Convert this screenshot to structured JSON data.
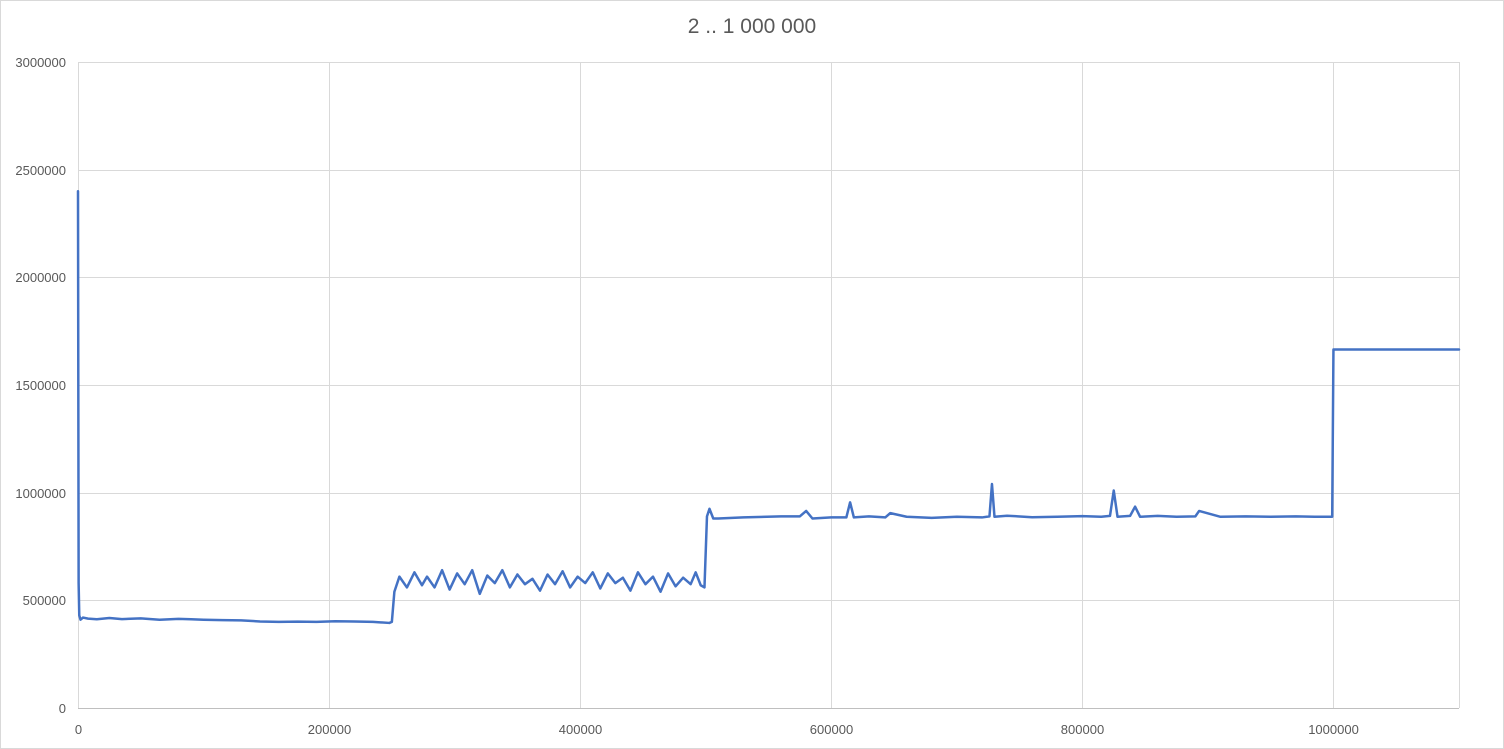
{
  "chart_data": {
    "type": "line",
    "title": "2 .. 1 000 000",
    "xlabel": "",
    "ylabel": "",
    "xlim": [
      0,
      1100000
    ],
    "ylim": [
      0,
      3000000
    ],
    "x_ticks": [
      0,
      200000,
      400000,
      600000,
      800000,
      1000000
    ],
    "x_tick_labels": [
      "0",
      "200000",
      "400000",
      "600000",
      "800000",
      "1000000"
    ],
    "y_ticks": [
      0,
      500000,
      1000000,
      1500000,
      2000000,
      2500000,
      3000000
    ],
    "y_tick_labels": [
      "0",
      "500000",
      "1000000",
      "1500000",
      "2000000",
      "2500000",
      "3000000"
    ],
    "grid": true,
    "legend": "none",
    "colors": {
      "series": "#4472C4",
      "grid": "#d9d9d9",
      "axis": "#bfbfbf",
      "text": "#595959"
    },
    "series": [
      {
        "x": [
          0,
          500,
          1000,
          2000,
          4000,
          8000,
          15000,
          25000,
          35000,
          50000,
          65000,
          80000,
          90000,
          100000,
          115000,
          130000,
          145000,
          160000,
          175000,
          190000,
          205000,
          220000,
          235000,
          248000,
          250000,
          252000,
          256000,
          262000,
          268000,
          274000,
          278000,
          284000,
          290000,
          296000,
          302000,
          308000,
          314000,
          320000,
          326000,
          332000,
          338000,
          344000,
          350000,
          356000,
          362000,
          368000,
          374000,
          380000,
          386000,
          392000,
          398000,
          404000,
          410000,
          416000,
          422000,
          428000,
          434000,
          440000,
          446000,
          452000,
          458000,
          464000,
          470000,
          476000,
          482000,
          488000,
          492000,
          496000,
          499000,
          501000,
          503000,
          506000,
          510000,
          530000,
          560000,
          575000,
          580000,
          585000,
          600000,
          612000,
          615000,
          618000,
          630000,
          643000,
          647000,
          660000,
          680000,
          700000,
          720000,
          726000,
          728000,
          730000,
          740000,
          760000,
          780000,
          800000,
          815000,
          822000,
          825000,
          828000,
          838000,
          842000,
          846000,
          860000,
          875000,
          890000,
          893000,
          910000,
          930000,
          950000,
          970000,
          985000,
          999000,
          1000000,
          1001000,
          1100000
        ],
        "values": [
          2400000,
          580000,
          430000,
          410000,
          420000,
          415000,
          412000,
          418000,
          413000,
          416000,
          410000,
          414000,
          412000,
          410000,
          408000,
          407000,
          402000,
          400000,
          401000,
          400000,
          403000,
          402000,
          400000,
          395000,
          400000,
          540000,
          610000,
          560000,
          630000,
          570000,
          610000,
          560000,
          640000,
          550000,
          625000,
          575000,
          640000,
          530000,
          615000,
          580000,
          640000,
          560000,
          620000,
          575000,
          600000,
          545000,
          620000,
          575000,
          635000,
          560000,
          610000,
          580000,
          630000,
          555000,
          625000,
          580000,
          605000,
          545000,
          630000,
          575000,
          610000,
          540000,
          625000,
          565000,
          605000,
          575000,
          630000,
          570000,
          560000,
          890000,
          925000,
          880000,
          880000,
          885000,
          890000,
          890000,
          915000,
          880000,
          885000,
          885000,
          955000,
          885000,
          890000,
          885000,
          905000,
          888000,
          883000,
          888000,
          885000,
          890000,
          1040000,
          888000,
          893000,
          886000,
          888000,
          891000,
          888000,
          892000,
          1010000,
          888000,
          892000,
          935000,
          888000,
          892000,
          888000,
          890000,
          915000,
          888000,
          890000,
          888000,
          890000,
          888000,
          888000,
          1665000,
          1665000,
          1665000
        ]
      }
    ]
  }
}
